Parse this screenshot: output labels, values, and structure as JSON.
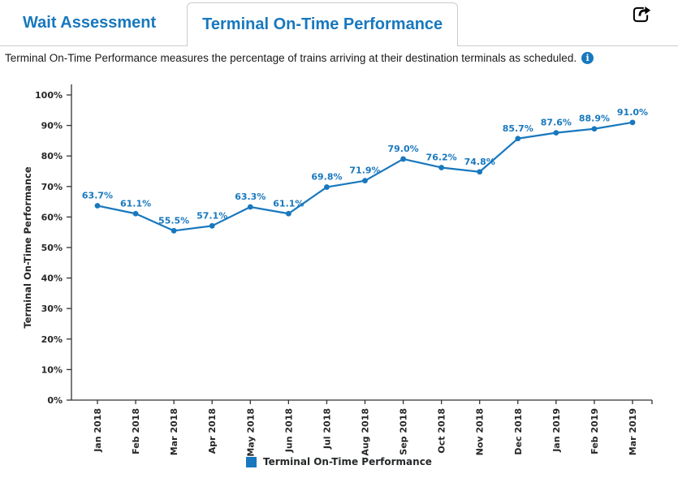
{
  "tabs": [
    {
      "label": "Wait Assessment",
      "active": false
    },
    {
      "label": "Terminal On-Time Performance",
      "active": true
    }
  ],
  "toolbar": {
    "share_icon": "share-icon"
  },
  "description": {
    "text": "Terminal On-Time Performance measures the percentage of trains arriving at their destination terminals as scheduled.",
    "info_glyph": "i"
  },
  "colors": {
    "accent": "#1878be",
    "axis": "#333333",
    "tick_text": "#262626",
    "tab_border": "#cccccc"
  },
  "chart_data": {
    "type": "line",
    "title": "Terminal On-Time Performance",
    "categories": [
      "Jan 2018",
      "Feb 2018",
      "Mar 2018",
      "Apr 2018",
      "May 2018",
      "Jun 2018",
      "Jul 2018",
      "Aug 2018",
      "Sep 2018",
      "Oct 2018",
      "Nov 2018",
      "Dec 2018",
      "Jan 2019",
      "Feb 2019",
      "Mar 2019"
    ],
    "values": [
      63.7,
      61.1,
      55.5,
      57.1,
      63.3,
      61.1,
      69.8,
      71.9,
      79.0,
      76.2,
      74.8,
      85.7,
      87.6,
      88.9,
      91.0
    ],
    "xlabel": "",
    "ylabel": "Terminal On-Time Performance",
    "ylim": [
      0,
      100
    ],
    "ytick_step": 10,
    "ytick_suffix": "%",
    "data_label_decimals": 1,
    "data_label_suffix": "%",
    "grid": false,
    "line_color": "#1878be",
    "marker_color": "#1878be",
    "label_color": "#1878be",
    "legend_position": "bottom",
    "legend": [
      {
        "label": "Terminal On-Time Performance",
        "color": "#1878be"
      }
    ]
  }
}
